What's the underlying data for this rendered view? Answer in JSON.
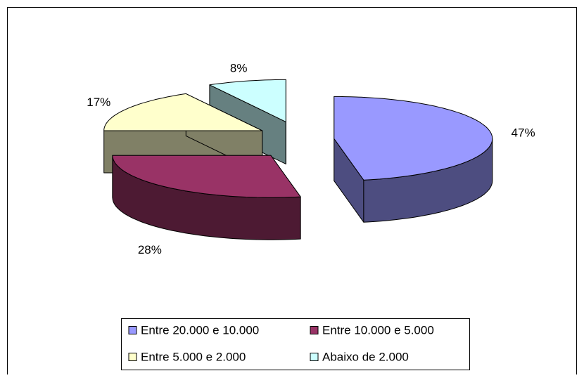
{
  "chart_data": {
    "type": "pie",
    "categories": [
      "Entre 20.000 e 10.000",
      "Entre 10.000 e 5.000",
      "Entre 5.000 e 2.000",
      "Abaixo de 2.000"
    ],
    "values": [
      47,
      28,
      17,
      8
    ],
    "value_labels": [
      "47%",
      "28%",
      "17%",
      "8%"
    ],
    "colors": [
      "#9999ff",
      "#993366",
      "#ffffcc",
      "#ccffff"
    ],
    "legend": "bottom"
  }
}
